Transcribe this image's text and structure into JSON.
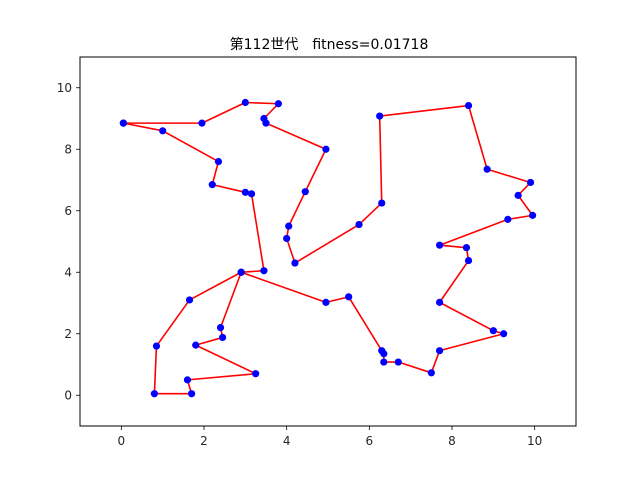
{
  "chart_data": {
    "type": "line",
    "title": "第112世代　fitness=0.01718",
    "xlabel": "",
    "ylabel": "",
    "xlim": [
      -1,
      11
    ],
    "ylim": [
      -1,
      11
    ],
    "xticks": [
      0,
      2,
      4,
      6,
      8,
      10
    ],
    "yticks": [
      0,
      2,
      4,
      6,
      8,
      10
    ],
    "grid": false,
    "line_color": "#ff0000",
    "marker_color": "#0000ff",
    "series": [
      {
        "points": [
          [
            0.05,
            8.85
          ],
          [
            1.0,
            8.6
          ],
          [
            2.35,
            7.6
          ],
          [
            2.2,
            6.85
          ],
          [
            3.0,
            6.6
          ],
          [
            3.15,
            6.55
          ],
          [
            3.45,
            4.05
          ],
          [
            2.9,
            4.0
          ],
          [
            2.4,
            2.2
          ],
          [
            2.45,
            1.88
          ],
          [
            1.8,
            1.63
          ],
          [
            3.25,
            0.7
          ],
          [
            1.6,
            0.5
          ],
          [
            1.7,
            0.05
          ],
          [
            0.8,
            0.05
          ],
          [
            0.85,
            1.6
          ],
          [
            1.65,
            3.1
          ],
          [
            2.9,
            4.0
          ],
          [
            4.95,
            3.02
          ],
          [
            5.5,
            3.2
          ],
          [
            6.3,
            1.45
          ],
          [
            6.35,
            1.35
          ],
          [
            6.35,
            1.08
          ],
          [
            6.7,
            1.08
          ],
          [
            7.5,
            0.73
          ],
          [
            7.7,
            1.45
          ],
          [
            9.25,
            2.0
          ],
          [
            9.0,
            2.1
          ],
          [
            7.7,
            3.02
          ],
          [
            8.4,
            4.38
          ],
          [
            8.35,
            4.8
          ],
          [
            7.7,
            4.88
          ],
          [
            9.35,
            5.72
          ],
          [
            9.95,
            5.85
          ],
          [
            9.6,
            6.5
          ],
          [
            9.9,
            6.92
          ],
          [
            8.85,
            7.35
          ],
          [
            8.4,
            9.42
          ],
          [
            6.25,
            9.08
          ],
          [
            6.3,
            6.25
          ],
          [
            5.75,
            5.55
          ],
          [
            4.2,
            4.3
          ],
          [
            4.0,
            5.1
          ],
          [
            4.05,
            5.5
          ],
          [
            4.45,
            6.62
          ],
          [
            4.95,
            8.0
          ],
          [
            3.5,
            8.85
          ],
          [
            3.45,
            9.0
          ],
          [
            3.8,
            9.48
          ],
          [
            3.0,
            9.52
          ],
          [
            1.95,
            8.85
          ],
          [
            0.05,
            8.85
          ]
        ]
      }
    ]
  }
}
